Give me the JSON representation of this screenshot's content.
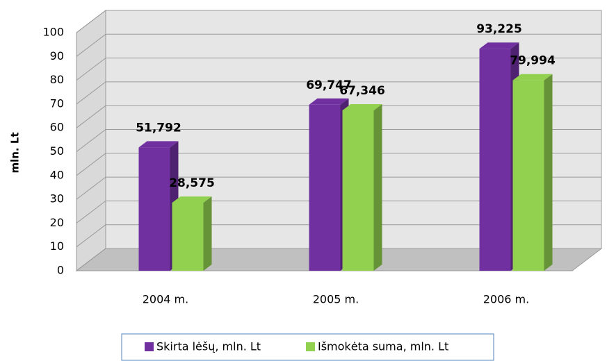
{
  "chart_data": {
    "type": "bar",
    "y_label": "mln. Lt",
    "categories": [
      "2004 m.",
      "2005 m.",
      "2006 m."
    ],
    "series": [
      {
        "name": "Skirta lėšų, mln. Lt",
        "color": "#7030a0",
        "values": [
          51.792,
          69.747,
          93.225
        ],
        "value_labels": [
          "51,792",
          "69,747",
          "93,225"
        ]
      },
      {
        "name": "Išmokėta suma, mln. Lt",
        "color": "#92d050",
        "values": [
          28.575,
          67.346,
          79.994
        ],
        "value_labels": [
          "28,575",
          "67,346",
          "79,994"
        ]
      }
    ],
    "ylim": [
      0,
      100
    ],
    "yticks": [
      0,
      10,
      20,
      30,
      40,
      50,
      60,
      70,
      80,
      90,
      100
    ],
    "grid": true
  }
}
